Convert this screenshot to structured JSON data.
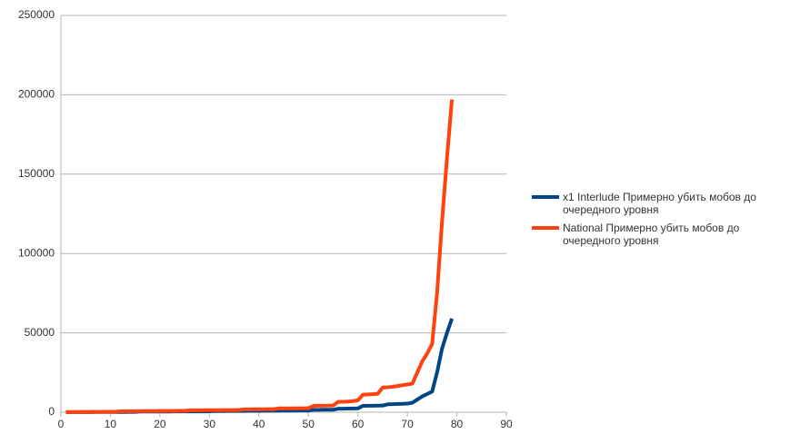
{
  "chart_data": {
    "type": "line",
    "x": [
      1,
      2,
      3,
      4,
      5,
      6,
      7,
      8,
      9,
      10,
      11,
      12,
      13,
      14,
      15,
      16,
      17,
      18,
      19,
      20,
      21,
      22,
      23,
      24,
      25,
      26,
      27,
      28,
      29,
      30,
      31,
      32,
      33,
      34,
      35,
      36,
      37,
      38,
      39,
      40,
      41,
      42,
      43,
      44,
      45,
      46,
      47,
      48,
      49,
      50,
      51,
      52,
      53,
      54,
      55,
      56,
      57,
      58,
      59,
      60,
      61,
      62,
      63,
      64,
      65,
      66,
      67,
      68,
      69,
      70,
      71,
      72,
      73,
      74,
      75,
      76,
      77,
      78,
      79
    ],
    "series": [
      {
        "name": "x1 Interlude Примерно убить мобов до очередного уровня",
        "color": "#004586",
        "values": [
          50,
          60,
          70,
          80,
          90,
          100,
          110,
          120,
          130,
          140,
          150,
          160,
          170,
          180,
          190,
          400,
          410,
          420,
          430,
          440,
          450,
          460,
          470,
          480,
          490,
          500,
          510,
          520,
          530,
          540,
          700,
          720,
          740,
          760,
          780,
          800,
          820,
          840,
          860,
          880,
          900,
          920,
          940,
          960,
          980,
          1000,
          1020,
          1040,
          1060,
          1080,
          1500,
          1520,
          1540,
          1560,
          1580,
          2200,
          2250,
          2300,
          2350,
          2400,
          4000,
          4050,
          4100,
          4150,
          4200,
          5000,
          5100,
          5200,
          5300,
          5400,
          6000,
          8000,
          10000,
          11500,
          13000,
          25000,
          40000,
          50000,
          59000
        ]
      },
      {
        "name": "National Примерно убить мобов до очередного уровня",
        "color": "#ff420e",
        "values": [
          100,
          120,
          140,
          160,
          180,
          200,
          220,
          240,
          260,
          280,
          300,
          600,
          620,
          640,
          660,
          680,
          700,
          720,
          740,
          760,
          780,
          800,
          820,
          840,
          860,
          1200,
          1220,
          1240,
          1260,
          1280,
          1300,
          1320,
          1340,
          1360,
          1380,
          1400,
          1800,
          1820,
          1840,
          1860,
          1880,
          1900,
          1920,
          2400,
          2420,
          2440,
          2460,
          2480,
          2500,
          2520,
          4000,
          4050,
          4100,
          4150,
          4200,
          6500,
          6600,
          6700,
          7000,
          7500,
          11000,
          11200,
          11400,
          11600,
          15500,
          15700,
          16000,
          16500,
          17000,
          17500,
          18000,
          25000,
          32000,
          37000,
          43000,
          75000,
          120000,
          160000,
          197000
        ]
      }
    ],
    "xlim": [
      0,
      90
    ],
    "xticks": [
      0,
      10,
      20,
      30,
      40,
      50,
      60,
      70,
      80,
      90
    ],
    "ylim": [
      0,
      250000
    ],
    "yticks": [
      0,
      50000,
      100000,
      150000,
      200000,
      250000
    ],
    "grid": true,
    "legend": "right"
  }
}
